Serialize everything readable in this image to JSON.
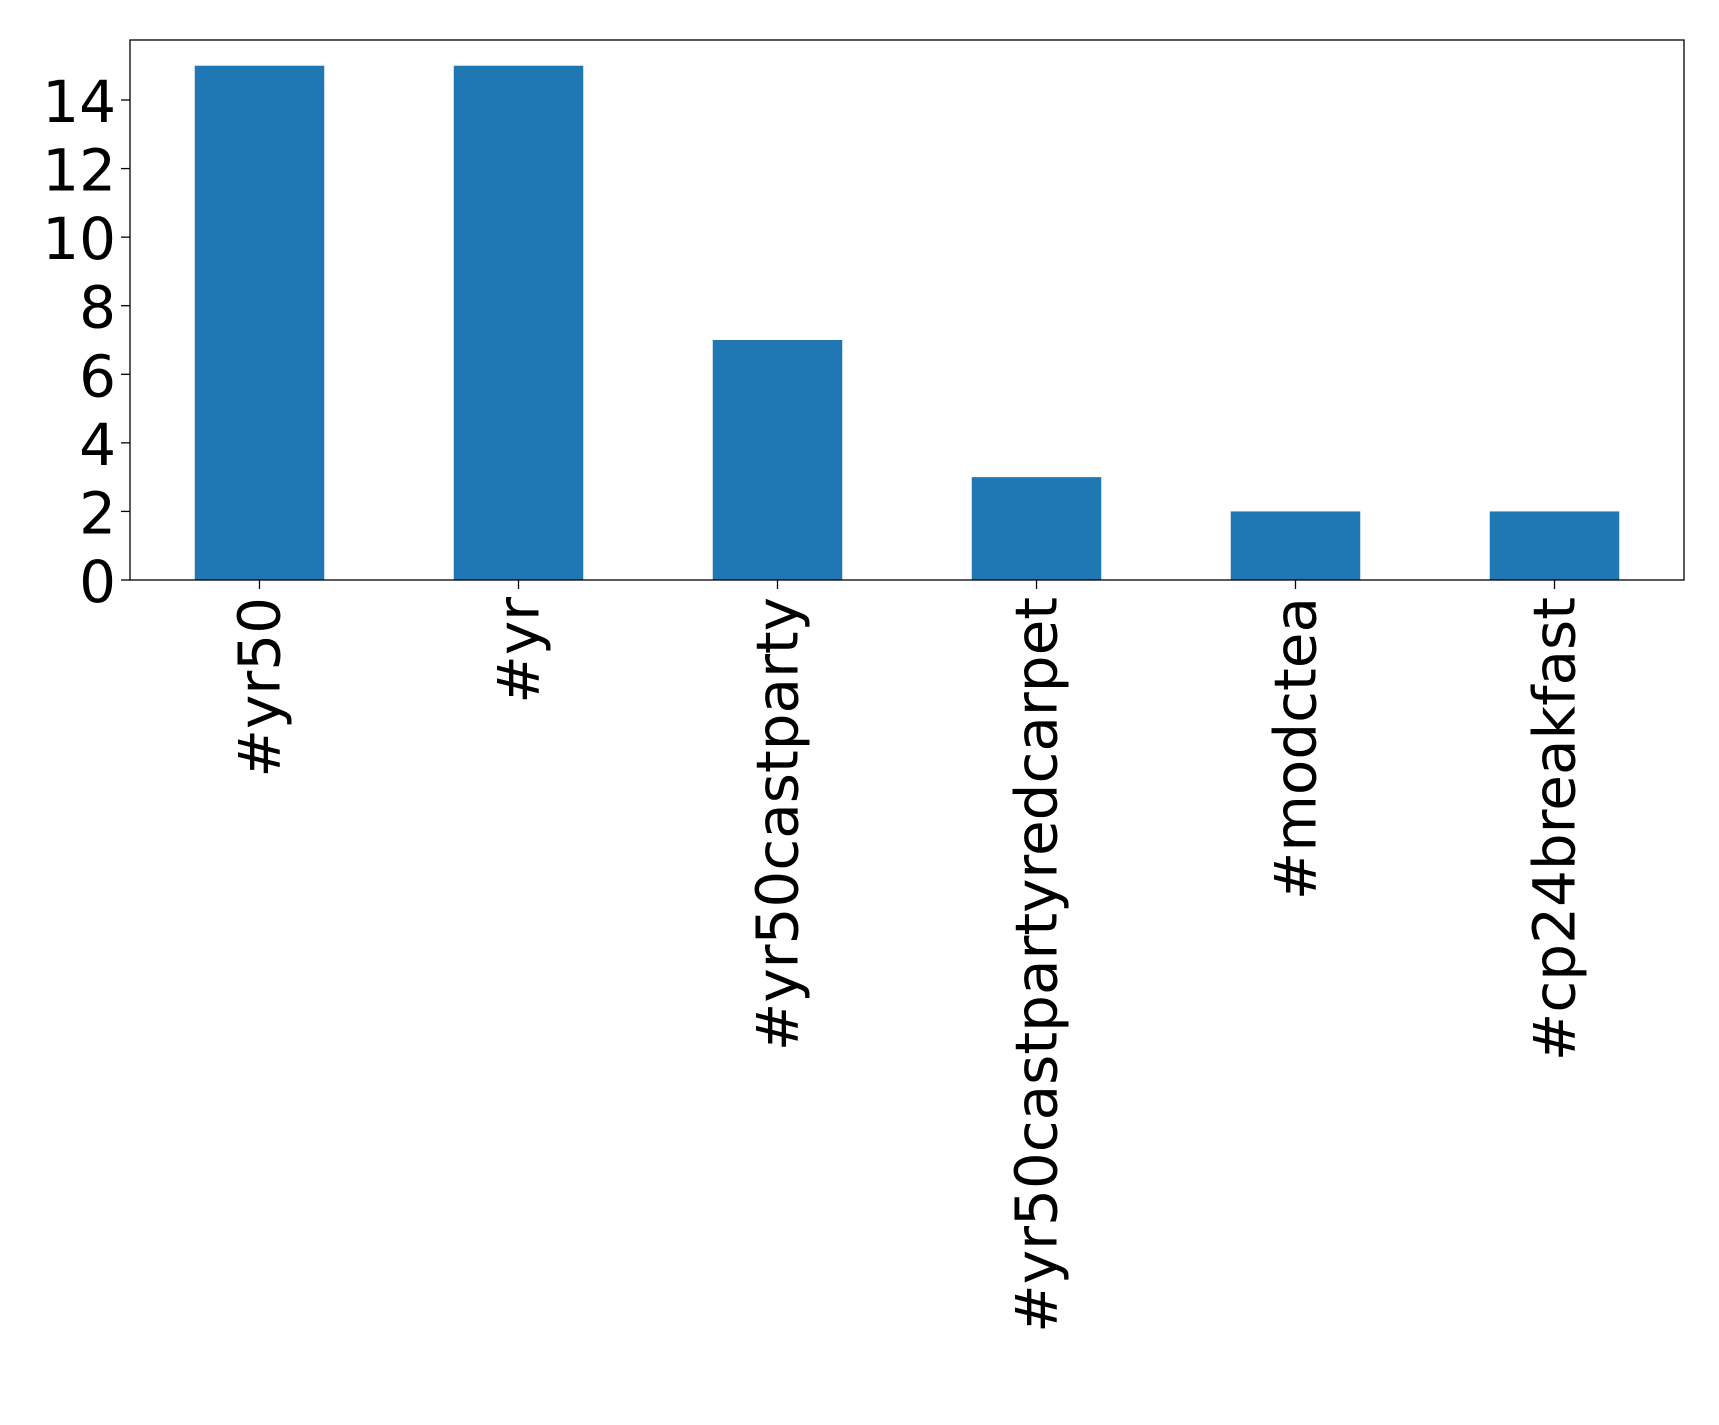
{
  "chart_data": {
    "type": "bar",
    "title": "",
    "xlabel": "",
    "ylabel": "",
    "categories": [
      "#yr50",
      "#yr",
      "#yr50castparty",
      "#yr50castpartyredcarpet",
      "#modctea",
      "#cp24breakfast"
    ],
    "values": [
      15,
      15,
      7,
      3,
      2,
      2
    ],
    "ylim": [
      0,
      15.75
    ],
    "yticks": [
      0,
      2,
      4,
      6,
      8,
      10,
      12,
      14
    ],
    "grid": false,
    "legend": "none",
    "colors": {
      "bar": "#1f77b4",
      "axis": "#000000",
      "background": "#ffffff"
    }
  }
}
